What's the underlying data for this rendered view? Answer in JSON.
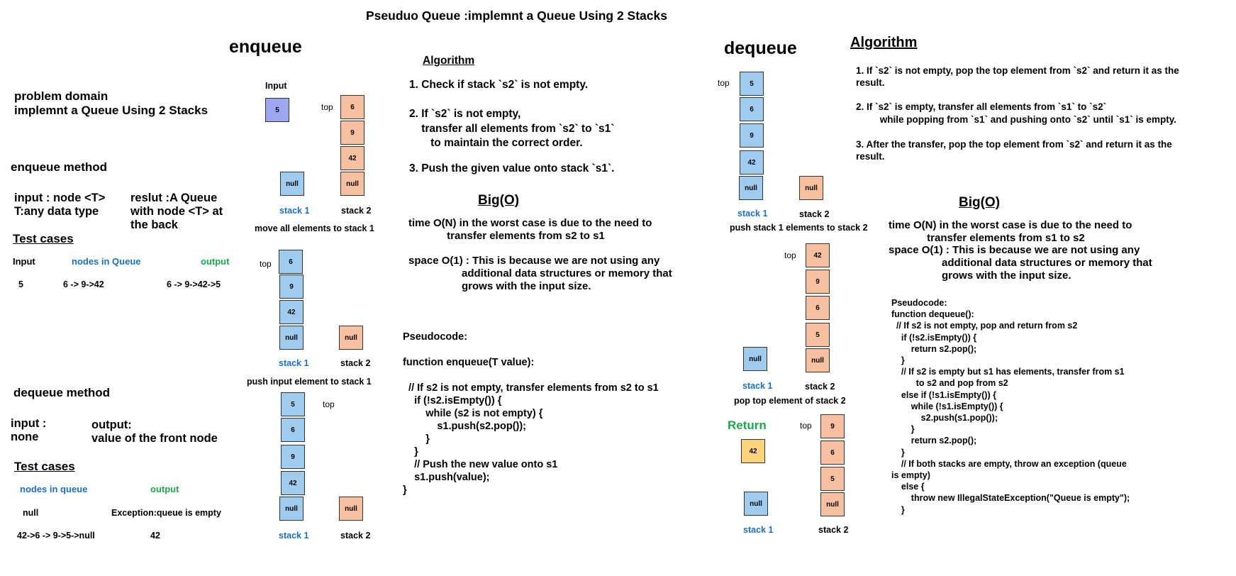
{
  "title": "Pseuduo Queue :implemnt a Queue Using 2 Stacks",
  "left": {
    "problem_domain_label": "problem domain",
    "problem_domain_text": "implemnt a Queue Using 2 Stacks",
    "enqueue_method": "enqueue method",
    "enqueue_input": "input : node <T>\nT:any data type",
    "enqueue_result": "reslut :A Queue\nwith node <T> at\nthe back",
    "test_cases_1": "Test cases",
    "tc1_headers": [
      "Input",
      "nodes in Queue",
      "output"
    ],
    "tc1_row": [
      "5",
      "6 -> 9->42",
      "6 -> 9->42->5"
    ],
    "dequeue_method": "dequeue method",
    "dequeue_input": "input :\nnone",
    "dequeue_output": "output:\nvalue of the front node",
    "test_cases_2": "Test cases",
    "tc2_headers": [
      "nodes in queue",
      "output"
    ],
    "tc2_rows": [
      [
        "null",
        "Exception:queue is empty"
      ],
      [
        "42->6 -> 9->5->null",
        "42"
      ]
    ]
  },
  "enqueue": {
    "heading": "enqueue",
    "input_label": "Input",
    "input_value": "5",
    "top": "top",
    "null": "null",
    "stack1": "stack 1",
    "stack2": "stack 2",
    "d1": {
      "stack2": [
        "6",
        "9",
        "42",
        "null"
      ]
    },
    "move_caption": "move all elements to stack 1",
    "d2": {
      "stack1": [
        "6",
        "9",
        "42",
        "null"
      ]
    },
    "push_caption": "push input element to stack 1",
    "d3": {
      "stack1": [
        "5",
        "6",
        "9",
        "42",
        "null"
      ]
    },
    "algorithm_title": "Algorithm",
    "steps": [
      "1. Check if stack `s2` is not empty.",
      "2. If `s2` is not empty,\n    transfer all elements from `s2` to `s1`\n       to maintain the correct order.",
      "3. Push the given value onto stack `s1`."
    ],
    "bigo_title": "Big(O)",
    "time": "time O(N) in the worst case is due to the need to\n             transfer elements from s2 to s1",
    "space": "space O(1) : This is because we are not using any\n                  additional data structures or memory that\n                  grows with the input size.",
    "pseudocode": "Pseudocode:\n\nfunction enqueue(T value):\n\n  // If s2 is not empty, transfer elements from s2 to s1\n    if (!s2.isEmpty()) {\n        while (s2 is not empty) {\n            s1.push(s2.pop());\n        }\n    }\n    // Push the new value onto s1\n    s1.push(value);\n}"
  },
  "dequeue": {
    "heading": "dequeue",
    "top": "top",
    "null": "null",
    "stack1": "stack 1",
    "stack2": "stack 2",
    "d1": {
      "stack1": [
        "5",
        "6",
        "9",
        "42",
        "null"
      ]
    },
    "push_caption": "push stack 1 elements to stack 2",
    "d2": {
      "stack2": [
        "42",
        "9",
        "6",
        "5",
        "null"
      ]
    },
    "pop_caption": "pop top element of stack 2",
    "return_label": "Return",
    "return_value": "42",
    "d3": {
      "stack2": [
        "9",
        "6",
        "5",
        "null"
      ]
    },
    "algorithm_title": "Algorithm",
    "steps": [
      "1. If `s2` is not empty, pop the top element from `s2` and return it as the\nresult.",
      "2. If `s2` is empty, transfer all elements from `s1` to `s2`\n         while popping from `s1` and pushing onto `s2` until `s1` is empty.",
      "3. After the transfer, pop the top element from `s2` and return it as the\nresult."
    ],
    "bigo_title": "Big(O)",
    "time": "time O(N) in the worst case is due to the need to\n             transfer elements from s1 to s2",
    "space": "space O(1) : This is because we are not using any\n                  additional data structures or memory that\n                  grows with the input size.",
    "pseudocode": "Pseudocode:\nfunction dequeue():\n  // If s2 is not empty, pop and return from s2\n    if (!s2.isEmpty()) {\n        return s2.pop();\n    }\n    // If s2 is empty but s1 has elements, transfer from s1\n          to s2 and pop from s2\n    else if (!s1.isEmpty()) {\n        while (!s1.isEmpty()) {\n            s2.push(s1.pop());\n        }\n        return s2.pop();\n    }\n    // If both stacks are empty, throw an exception (queue\nis empty)\n    else {\n        throw new IllegalStateException(\"Queue is empty\");\n    }"
  },
  "colors": {
    "stack_blue": "#9ecbee",
    "stack_orange": "#f7c0a0",
    "input_purple": "#9ca7f0",
    "return_yellow": "#fdd27c",
    "label_blue": "#1a6fc4",
    "label_green": "#1aa64a"
  }
}
